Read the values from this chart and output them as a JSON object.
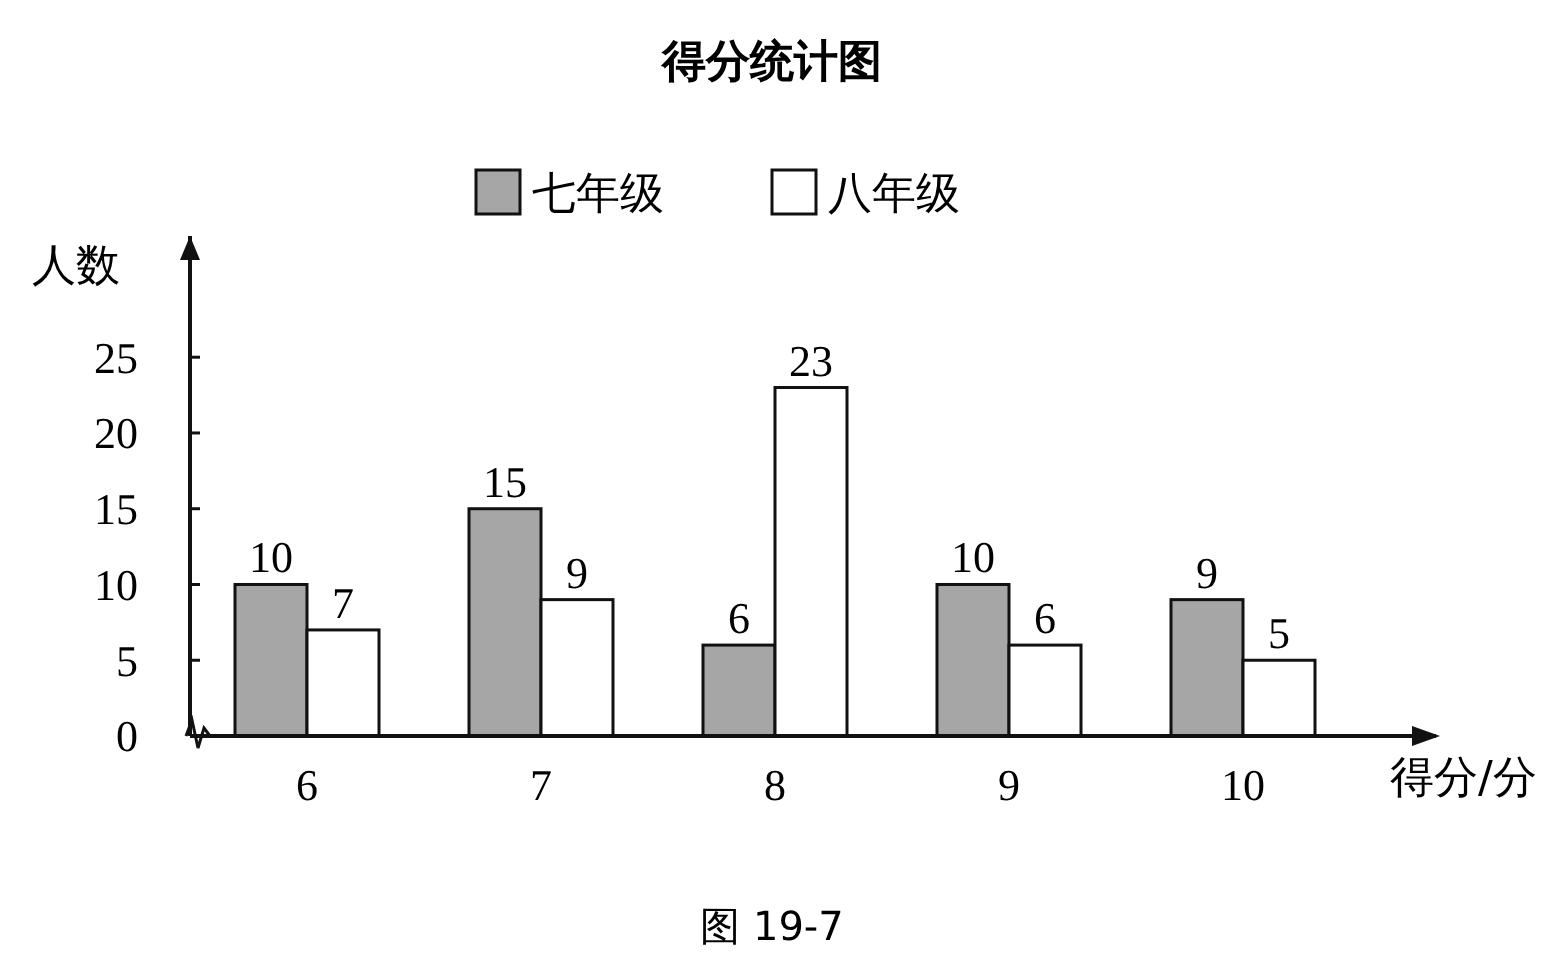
{
  "chart_data": {
    "type": "bar",
    "title": "得分统计图",
    "xlabel": "得分/分",
    "ylabel": "人数",
    "categories": [
      "6",
      "7",
      "8",
      "9",
      "10"
    ],
    "series": [
      {
        "name": "七年级",
        "color": "#a6a6a6",
        "values": [
          10,
          15,
          6,
          10,
          9
        ]
      },
      {
        "name": "八年级",
        "color": "#ffffff",
        "values": [
          7,
          9,
          23,
          6,
          5
        ]
      }
    ],
    "ylim": [
      0,
      33
    ],
    "yticks": [
      0,
      5,
      10,
      15,
      20,
      25
    ],
    "grid": false,
    "legend": "top",
    "data_labels": true,
    "annotations": [
      "图 19-7"
    ]
  }
}
